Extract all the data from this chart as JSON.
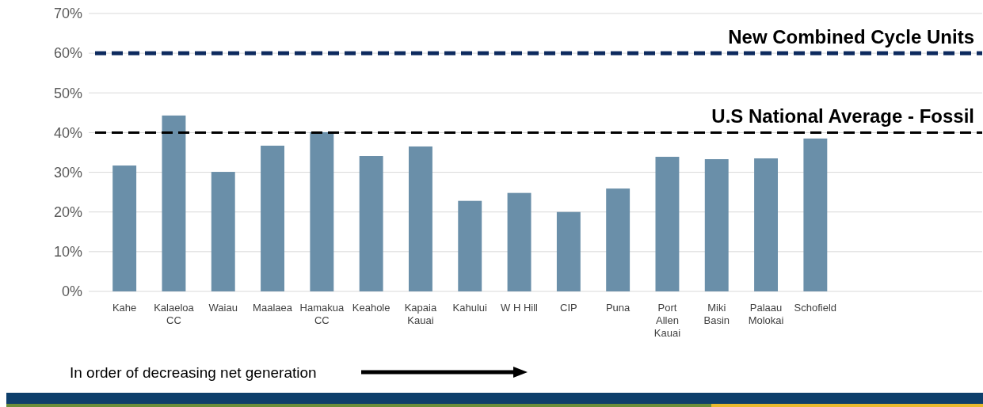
{
  "chart_data": {
    "type": "bar",
    "categories": [
      "Kahe",
      "Kalaeloa CC",
      "Waiau",
      "Maalaea",
      "Hamakua CC",
      "Keahole",
      "Kapaia Kauai",
      "Kahului",
      "W H Hill",
      "CIP",
      "Puna",
      "Port Allen Kauai",
      "Miki Basin",
      "Palaau Molokai",
      "Schofield"
    ],
    "values": [
      31.7,
      44.3,
      30.1,
      36.7,
      40.1,
      34.1,
      36.5,
      22.8,
      24.8,
      20.0,
      25.9,
      33.9,
      33.3,
      33.5,
      38.5
    ],
    "color": "#6a8fa9",
    "ylim": [
      0,
      70
    ],
    "yticks": [
      {
        "value": 0,
        "label": "0%"
      },
      {
        "value": 10,
        "label": "10%"
      },
      {
        "value": 20,
        "label": "20%"
      },
      {
        "value": 30,
        "label": "30%"
      },
      {
        "value": 40,
        "label": "40%"
      },
      {
        "value": 50,
        "label": "50%"
      },
      {
        "value": 60,
        "label": "60%"
      },
      {
        "value": 70,
        "label": "70%"
      }
    ],
    "grid": "y",
    "ref_lines": [
      {
        "axis": "y",
        "value": 60,
        "label": "New Combined Cycle Units",
        "color": "#0d2a5e",
        "line_style": "dashed"
      },
      {
        "axis": "y",
        "value": 40,
        "label": "U.S National Average - Fossil",
        "color": "#000000",
        "line_style": "dashed"
      }
    ],
    "annotations": [
      "In order of decreasing net generation"
    ]
  }
}
